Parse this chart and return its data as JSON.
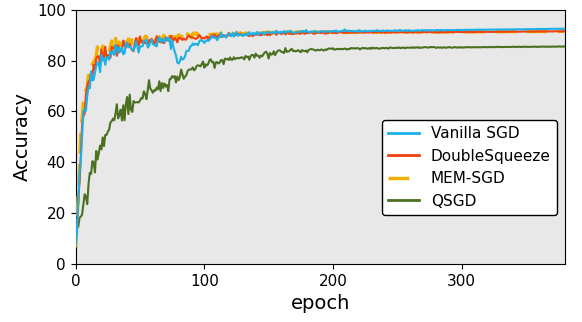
{
  "title": "",
  "xlabel": "epoch",
  "ylabel": "Accuracy",
  "xlim": [
    0,
    380
  ],
  "ylim": [
    0,
    100
  ],
  "yticks": [
    0,
    20,
    40,
    60,
    80,
    100
  ],
  "xticks": [
    0,
    100,
    200,
    300
  ],
  "background_color": "#e8e8e8",
  "lines": {
    "vanilla_sgd": {
      "label": "Vanilla SGD",
      "color": "#1ab0e8",
      "lw": 1.5,
      "linestyle": "solid"
    },
    "doublesqueeze": {
      "label": "DoubleSqueeze",
      "color": "#f04010",
      "lw": 1.5,
      "linestyle": "solid"
    },
    "mem_sgd": {
      "label": "MEM-SGD",
      "color": "#f0b000",
      "lw": 2.5,
      "linestyle": "dashed"
    },
    "qsgd": {
      "label": "QSGD",
      "color": "#4a7020",
      "lw": 1.5,
      "linestyle": "solid"
    }
  },
  "legend_fontsize": 11,
  "tick_fontsize": 11,
  "label_fontsize": 14
}
